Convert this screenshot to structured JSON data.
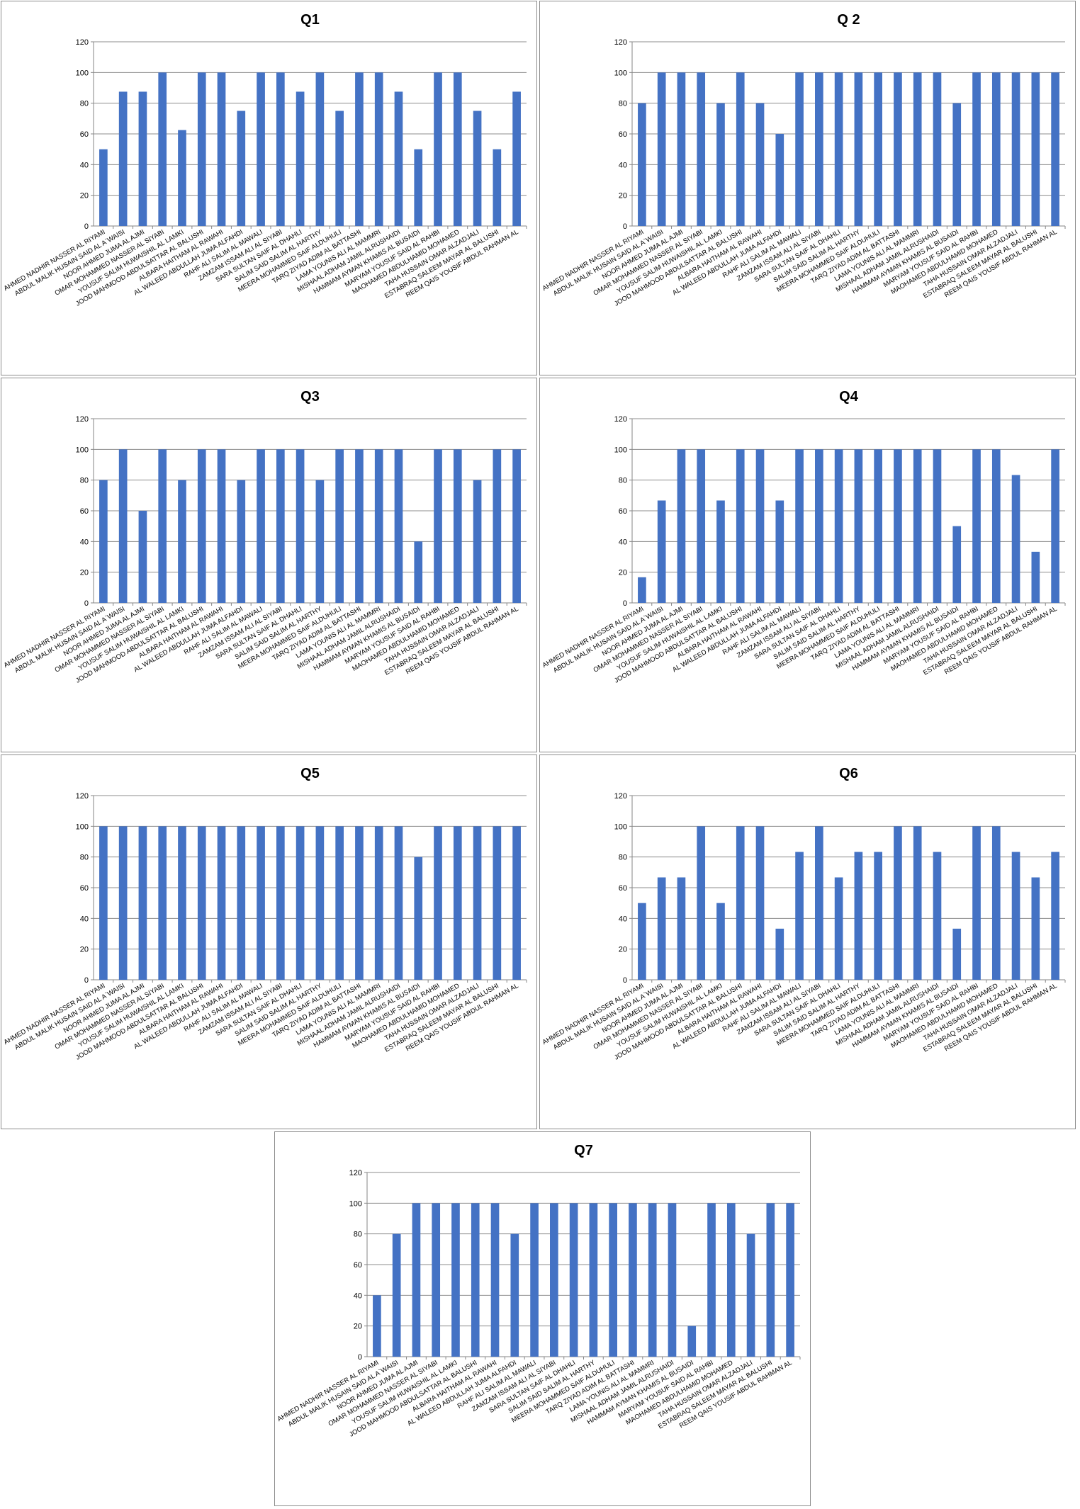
{
  "categories": [
    "AHMED NADHIR  NASSER AL RIYAMI",
    "ABDUL MALIK HUSAIN SAID AL A`WAISI",
    "NOOR AHMED JUMA AL AJMI",
    "OMAR MOHAMMED  NASSER AL SIYABI",
    "YOUSUF SALIM HUWAISHIL AL LAMKI",
    "JOOD MAHMOOD ABDULSATTAR AL BALUSHI",
    "ALBARA HAITHAM  AL RAWAHI",
    "AL WALEED ABDULLAH JUMA ALFAHDI",
    "RAHF ALI SALIM AL MAWALI",
    "ZAMZAM ISSAM ALI AL SIYABI",
    "SARA SULTAN SAIF AL DHAHLI",
    "SALIM SAID SALIM AL HARTHY",
    "MEERA MOHAMMED  SAIF ALDUHULI",
    "TARQ ZIYAD ADIM AL BATTASHI",
    "LAMA YOUNIS ALI AL MAMMRI",
    "MISHAAL ADHAM JAMIL ALRUSHAIDI",
    "HAMMAM AYMAN KHAMIS AL BUSAIDI",
    "MARYAM YOUSUF SAID AL RAHBI",
    "MAOHAMED ABDULHAMID MOHAMED",
    "TAHA HUSSAIN OMAR ALZADJALI",
    "ESTABRAQ SALEEM MAYAR AL BALUSHI",
    "REEM QAIS YOUSIF ABDUL RAHMAN AL"
  ],
  "chart_data": [
    {
      "type": "bar",
      "title": "Q1",
      "ylim": [
        0,
        120
      ],
      "yticks": [
        0,
        20,
        40,
        60,
        80,
        100,
        120
      ],
      "color": "#4472C4",
      "grid": true,
      "values": [
        50,
        87.5,
        87.5,
        100,
        62.5,
        100,
        100,
        75,
        100,
        100,
        87.5,
        100,
        75,
        100,
        100,
        87.5,
        50,
        100,
        100,
        75,
        50,
        87.5
      ]
    },
    {
      "type": "bar",
      "title": "Q 2",
      "ylim": [
        0,
        120
      ],
      "yticks": [
        0,
        20,
        40,
        60,
        80,
        100,
        120
      ],
      "color": "#4472C4",
      "grid": true,
      "values": [
        80,
        100,
        100,
        100,
        80,
        100,
        80,
        60,
        100,
        100,
        100,
        100,
        100,
        100,
        100,
        100,
        80,
        100,
        100,
        100,
        100,
        100
      ]
    },
    {
      "type": "bar",
      "title": "Q3",
      "ylim": [
        0,
        120
      ],
      "yticks": [
        0,
        20,
        40,
        60,
        80,
        100,
        120
      ],
      "color": "#4472C4",
      "grid": true,
      "values": [
        80,
        100,
        60,
        100,
        80,
        100,
        100,
        80,
        100,
        100,
        100,
        80,
        100,
        100,
        100,
        100,
        40,
        100,
        100,
        80,
        100,
        100
      ]
    },
    {
      "type": "bar",
      "title": "Q4",
      "ylim": [
        0,
        120
      ],
      "yticks": [
        0,
        20,
        40,
        60,
        80,
        100,
        120
      ],
      "color": "#4472C4",
      "grid": true,
      "values": [
        16.7,
        66.7,
        100,
        100,
        66.7,
        100,
        100,
        66.7,
        100,
        100,
        100,
        100,
        100,
        100,
        100,
        100,
        50,
        100,
        100,
        83.3,
        33.3,
        100
      ]
    },
    {
      "type": "bar",
      "title": "Q5",
      "ylim": [
        0,
        120
      ],
      "yticks": [
        0,
        20,
        40,
        60,
        80,
        100,
        120
      ],
      "color": "#4472C4",
      "grid": true,
      "values": [
        100,
        100,
        100,
        100,
        100,
        100,
        100,
        100,
        100,
        100,
        100,
        100,
        100,
        100,
        100,
        100,
        80,
        100,
        100,
        100,
        100,
        100
      ]
    },
    {
      "type": "bar",
      "title": "Q6",
      "ylim": [
        0,
        120
      ],
      "yticks": [
        0,
        20,
        40,
        60,
        80,
        100,
        120
      ],
      "color": "#4472C4",
      "grid": true,
      "values": [
        50,
        66.7,
        66.7,
        100,
        50,
        100,
        100,
        33.3,
        83.3,
        100,
        66.7,
        83.3,
        83.3,
        100,
        100,
        83.3,
        33.3,
        100,
        100,
        83.3,
        66.7,
        83.3
      ]
    },
    {
      "type": "bar",
      "title": "Q7",
      "ylim": [
        0,
        120
      ],
      "yticks": [
        0,
        20,
        40,
        60,
        80,
        100,
        120
      ],
      "color": "#4472C4",
      "grid": true,
      "values": [
        40,
        80,
        100,
        100,
        100,
        100,
        100,
        80,
        100,
        100,
        100,
        100,
        100,
        100,
        100,
        100,
        20,
        100,
        100,
        80,
        100,
        100
      ]
    }
  ]
}
